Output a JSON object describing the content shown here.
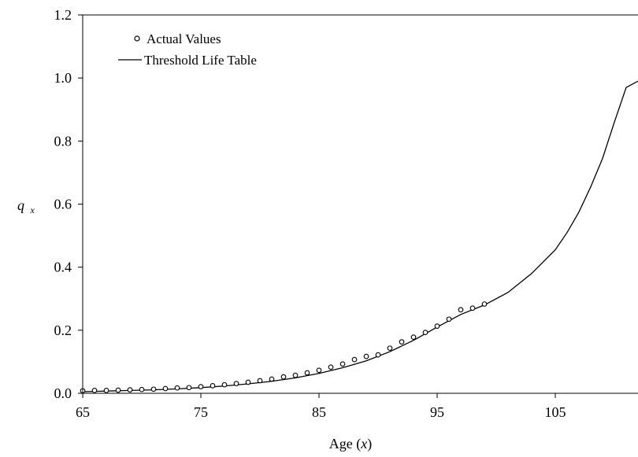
{
  "chart_data": {
    "type": "scatter",
    "title": "",
    "xlabel_main": "Age (",
    "xlabel_var": "x",
    "xlabel_close": ")",
    "ylabel_main": "q",
    "ylabel_sub": "x",
    "xlim": [
      65,
      112
    ],
    "ylim": [
      0,
      1.2
    ],
    "xticks": [
      65,
      75,
      85,
      95,
      105
    ],
    "xtick_labels": [
      "65",
      "75",
      "85",
      "95",
      "105"
    ],
    "yticks": [
      0,
      0.2,
      0.4,
      0.6,
      0.8,
      1.0,
      1.2
    ],
    "ytick_labels": [
      "0.0",
      "0.2",
      "0.4",
      "0.6",
      "0.8",
      "1.0",
      "1.2"
    ],
    "grid": false,
    "legend_position": "top-left",
    "series": [
      {
        "name": "Actual Values",
        "kind": "markers",
        "x": [
          65,
          66,
          67,
          68,
          69,
          70,
          71,
          72,
          73,
          74,
          75,
          76,
          77,
          78,
          79,
          80,
          81,
          82,
          83,
          84,
          85,
          86,
          87,
          88,
          89,
          90,
          91,
          92,
          93,
          94,
          95,
          96,
          97,
          98,
          99
        ],
        "y": [
          0.008,
          0.009,
          0.009,
          0.01,
          0.011,
          0.012,
          0.013,
          0.015,
          0.017,
          0.018,
          0.021,
          0.024,
          0.027,
          0.031,
          0.035,
          0.04,
          0.045,
          0.052,
          0.057,
          0.065,
          0.073,
          0.083,
          0.093,
          0.107,
          0.117,
          0.122,
          0.143,
          0.163,
          0.178,
          0.193,
          0.213,
          0.235,
          0.265,
          0.27,
          0.283
        ]
      },
      {
        "name": "Threshold Life Table",
        "kind": "line",
        "x": [
          65,
          67,
          69,
          71,
          73,
          75,
          77,
          79,
          81,
          83,
          85,
          87,
          89,
          91,
          93,
          95,
          97,
          99,
          101,
          103,
          105,
          106,
          107,
          108,
          109,
          110,
          111,
          112
        ],
        "y": [
          0.005,
          0.007,
          0.009,
          0.011,
          0.014,
          0.018,
          0.023,
          0.03,
          0.038,
          0.049,
          0.063,
          0.081,
          0.103,
          0.132,
          0.168,
          0.21,
          0.25,
          0.28,
          0.32,
          0.38,
          0.455,
          0.51,
          0.575,
          0.655,
          0.745,
          0.86,
          0.97,
          0.99
        ]
      }
    ]
  }
}
